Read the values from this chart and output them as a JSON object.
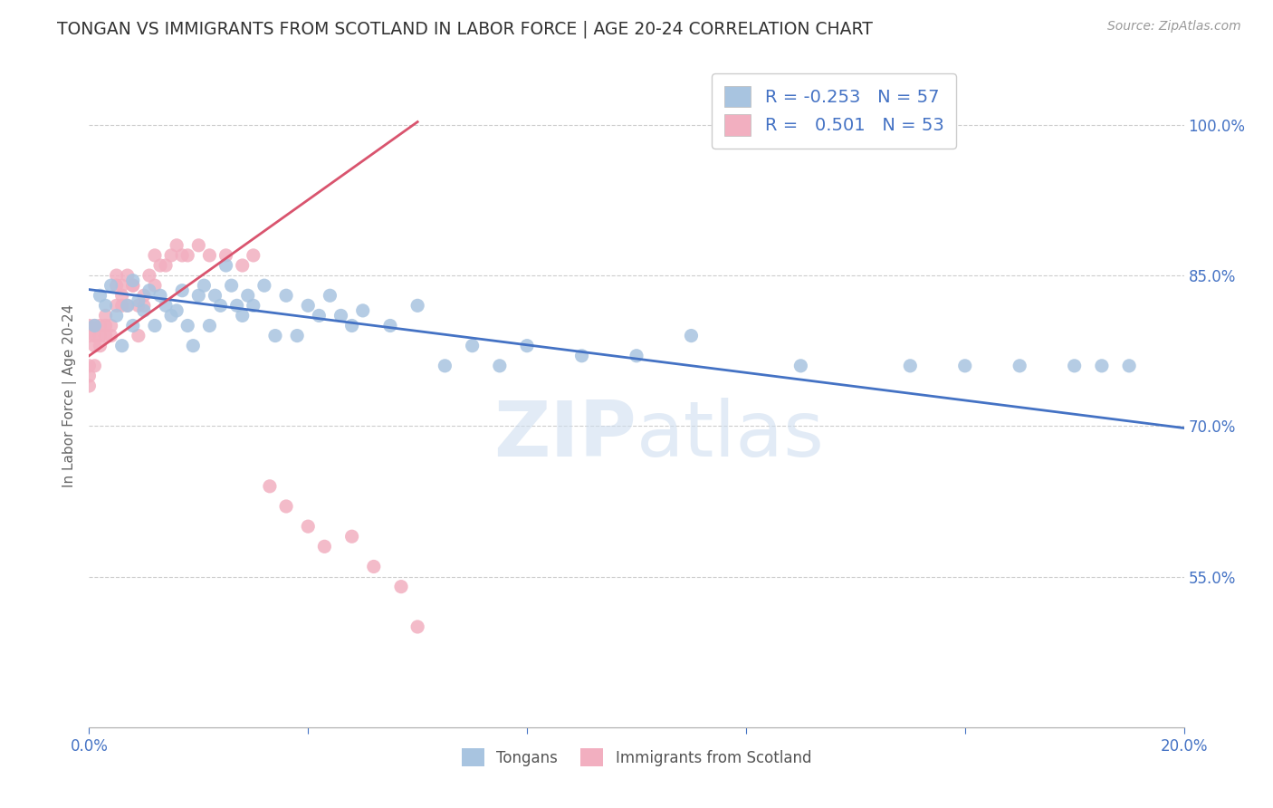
{
  "title": "TONGAN VS IMMIGRANTS FROM SCOTLAND IN LABOR FORCE | AGE 20-24 CORRELATION CHART",
  "source": "Source: ZipAtlas.com",
  "ylabel": "In Labor Force | Age 20-24",
  "watermark": "ZIPatlas",
  "xlim": [
    0.0,
    0.2
  ],
  "ylim": [
    0.4,
    1.06
  ],
  "yticks": [
    0.55,
    0.7,
    0.85,
    1.0
  ],
  "ytick_labels": [
    "55.0%",
    "70.0%",
    "85.0%",
    "100.0%"
  ],
  "xticks": [
    0.0,
    0.04,
    0.08,
    0.12,
    0.16,
    0.2
  ],
  "xtick_labels": [
    "0.0%",
    "",
    "",
    "",
    "",
    "20.0%"
  ],
  "blue_R": "-0.253",
  "blue_N": "57",
  "pink_R": "0.501",
  "pink_N": "53",
  "blue_color": "#a8c4e0",
  "pink_color": "#f2afc0",
  "blue_line_color": "#4472c4",
  "pink_line_color": "#d9546e",
  "legend_blue_label": "Tongans",
  "legend_pink_label": "Immigrants from Scotland",
  "blue_scatter_x": [
    0.001,
    0.002,
    0.003,
    0.004,
    0.005,
    0.006,
    0.007,
    0.008,
    0.008,
    0.009,
    0.01,
    0.011,
    0.012,
    0.013,
    0.014,
    0.015,
    0.016,
    0.017,
    0.018,
    0.019,
    0.02,
    0.021,
    0.022,
    0.023,
    0.024,
    0.025,
    0.026,
    0.027,
    0.028,
    0.029,
    0.03,
    0.032,
    0.034,
    0.036,
    0.038,
    0.04,
    0.042,
    0.044,
    0.046,
    0.048,
    0.05,
    0.055,
    0.06,
    0.065,
    0.07,
    0.075,
    0.08,
    0.09,
    0.1,
    0.11,
    0.13,
    0.15,
    0.16,
    0.17,
    0.18,
    0.185,
    0.19
  ],
  "blue_scatter_y": [
    0.8,
    0.83,
    0.82,
    0.84,
    0.81,
    0.78,
    0.82,
    0.8,
    0.845,
    0.825,
    0.815,
    0.835,
    0.8,
    0.83,
    0.82,
    0.81,
    0.815,
    0.835,
    0.8,
    0.78,
    0.83,
    0.84,
    0.8,
    0.83,
    0.82,
    0.86,
    0.84,
    0.82,
    0.81,
    0.83,
    0.82,
    0.84,
    0.79,
    0.83,
    0.79,
    0.82,
    0.81,
    0.83,
    0.81,
    0.8,
    0.815,
    0.8,
    0.82,
    0.76,
    0.78,
    0.76,
    0.78,
    0.77,
    0.77,
    0.79,
    0.76,
    0.76,
    0.76,
    0.76,
    0.76,
    0.76,
    0.76
  ],
  "pink_scatter_x": [
    0.0,
    0.0,
    0.0,
    0.0,
    0.0,
    0.001,
    0.001,
    0.001,
    0.001,
    0.002,
    0.002,
    0.002,
    0.003,
    0.003,
    0.003,
    0.004,
    0.004,
    0.005,
    0.005,
    0.005,
    0.006,
    0.006,
    0.006,
    0.007,
    0.007,
    0.008,
    0.008,
    0.009,
    0.009,
    0.01,
    0.01,
    0.011,
    0.012,
    0.012,
    0.013,
    0.014,
    0.015,
    0.016,
    0.017,
    0.018,
    0.02,
    0.022,
    0.025,
    0.028,
    0.03,
    0.033,
    0.036,
    0.04,
    0.043,
    0.048,
    0.052,
    0.057,
    0.06
  ],
  "pink_scatter_y": [
    0.8,
    0.79,
    0.76,
    0.75,
    0.74,
    0.8,
    0.79,
    0.78,
    0.76,
    0.8,
    0.79,
    0.78,
    0.81,
    0.8,
    0.79,
    0.8,
    0.79,
    0.85,
    0.84,
    0.82,
    0.84,
    0.83,
    0.82,
    0.85,
    0.82,
    0.84,
    0.84,
    0.82,
    0.79,
    0.83,
    0.82,
    0.85,
    0.84,
    0.87,
    0.86,
    0.86,
    0.87,
    0.88,
    0.87,
    0.87,
    0.88,
    0.87,
    0.87,
    0.86,
    0.87,
    0.64,
    0.62,
    0.6,
    0.58,
    0.59,
    0.56,
    0.54,
    0.5
  ],
  "blue_trend_x": [
    0.0,
    0.2
  ],
  "blue_trend_y": [
    0.836,
    0.698
  ],
  "pink_trend_x": [
    0.0,
    0.06
  ],
  "pink_trend_y": [
    0.77,
    1.003
  ],
  "background_color": "#ffffff",
  "grid_color": "#c8c8c8",
  "tick_color": "#4472c4",
  "title_color": "#333333",
  "title_fontsize": 13.5,
  "ylabel_fontsize": 11,
  "legend_fontsize": 14
}
